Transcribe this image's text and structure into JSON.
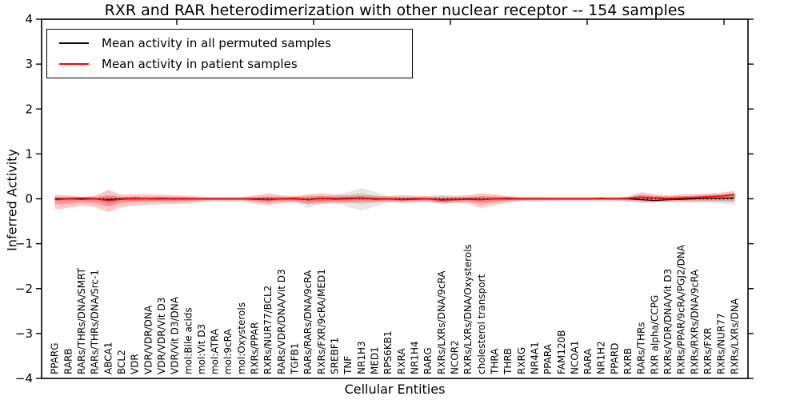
{
  "figure": {
    "title": "RXR and RAR heterodimerization with other nuclear receptor -- 154 samples",
    "xlabel": "Cellular Entities",
    "ylabel": "Inferred Activity",
    "legend": {
      "items": [
        {
          "label": "Mean activity in all permuted samples",
          "color": "#000000"
        },
        {
          "label": "Mean activity in patient samples",
          "color": "#ff0000"
        }
      ]
    }
  },
  "chart_data": {
    "type": "line",
    "title": "RXR and RAR heterodimerization with other nuclear receptor -- 154 samples",
    "xlabel": "Cellular Entities",
    "ylabel": "Inferred Activity",
    "ylim": [
      -4,
      4
    ],
    "yticks": [
      -4,
      -3,
      -2,
      -1,
      0,
      1,
      2,
      3,
      4
    ],
    "grid": false,
    "legend_position": "upper left",
    "zero_line": {
      "y": 0,
      "style": "dotted",
      "color": "#000000"
    },
    "categories": [
      "PPARG",
      "RARB",
      "RARs/THRs/DNA/SMRT",
      "RARs/THRs/DNA/Src-1",
      "ABCA1",
      "BCL2",
      "VDR",
      "VDR/VDR/DNA",
      "VDR/VDR/Vit D3",
      "VDR/Vit D3/DNA",
      "mol:Bile acids",
      "mol:Vit D3",
      "mol:ATRA",
      "mol:9cRA",
      "mol:Oxysterols",
      "RXRs/PPAR",
      "RXRs/NUR77/BCL2",
      "RARs/VDR/DNA/Vit D3",
      "TGFB1",
      "RARs/RARs/DNA/9cRA",
      "RXRs/FXR/9cRA/MED1",
      "SREBF1",
      "TNF",
      "NR1H3",
      "MED1",
      "RPS6KB1",
      "RXRA",
      "NR1H4",
      "RARG",
      "RXRs/LXRs/DNA/9cRA",
      "NCOR2",
      "RXRs/LXRs/DNA/Oxysterols",
      "cholesterol transport",
      "THRA",
      "THRB",
      "RXRG",
      "NR4A1",
      "PPARA",
      "FAM120B",
      "NCOA1",
      "RARA",
      "NR1H2",
      "PPARD",
      "RXRB",
      "RARs/THRs",
      "RXR alpha/CCPG",
      "RXRs/VDR/DNA/Vit D3",
      "RXRs/PPAR/9cRA/PGJ2/DNA",
      "RXRs/RXRs/DNA/9cRA",
      "RXRs/FXR",
      "RXRs/NUR77",
      "RXRs/LXRs/DNA"
    ],
    "series": [
      {
        "name": "Mean activity in all permuted samples",
        "color": "#000000",
        "band_color": "rgba(128,128,128,0.18)",
        "band_inner_color": "rgba(128,128,128,0.16)",
        "values": [
          0,
          0,
          0.01,
          0,
          -0.02,
          0,
          0.01,
          0,
          0,
          0,
          0,
          0,
          0,
          0,
          0,
          0,
          -0.01,
          0,
          0,
          -0.02,
          0.01,
          0,
          0.01,
          0.02,
          0,
          0,
          -0.01,
          0,
          0,
          -0.02,
          -0.01,
          0,
          -0.01,
          0,
          0,
          0,
          0,
          0,
          0,
          0,
          0,
          0,
          0,
          0,
          -0.02,
          -0.04,
          -0.02,
          -0.01,
          0,
          0.01,
          0.01,
          0.02
        ],
        "band_upper": [
          0.04,
          0.04,
          0.04,
          0.05,
          0.06,
          0.05,
          0.04,
          0.04,
          0.04,
          0.04,
          0.04,
          0.03,
          0.03,
          0.03,
          0.03,
          0.04,
          0.06,
          0.05,
          0.05,
          0.08,
          0.06,
          0.08,
          0.16,
          0.24,
          0.16,
          0.07,
          0.05,
          0.05,
          0.05,
          0.06,
          0.05,
          0.05,
          0.06,
          0.05,
          0.05,
          0.05,
          0.05,
          0.05,
          0.05,
          0.05,
          0.05,
          0.05,
          0.05,
          0.05,
          0.06,
          0.06,
          0.06,
          0.06,
          0.06,
          0.06,
          0.07,
          0.08
        ],
        "band_lower": [
          -0.05,
          -0.05,
          -0.04,
          -0.05,
          -0.07,
          -0.05,
          -0.05,
          -0.04,
          -0.04,
          -0.04,
          -0.04,
          -0.03,
          -0.03,
          -0.03,
          -0.03,
          -0.05,
          -0.07,
          -0.05,
          -0.06,
          -0.21,
          -0.1,
          -0.08,
          -0.18,
          -0.26,
          -0.18,
          -0.08,
          -0.06,
          -0.05,
          -0.05,
          -0.12,
          -0.08,
          -0.06,
          -0.07,
          -0.06,
          -0.05,
          -0.05,
          -0.05,
          -0.05,
          -0.06,
          -0.06,
          -0.06,
          -0.06,
          -0.06,
          -0.06,
          -0.08,
          -0.08,
          -0.08,
          -0.09,
          -0.1,
          -0.1,
          -0.11,
          -0.14
        ]
      },
      {
        "name": "Mean activity in patient samples",
        "color": "#ff0000",
        "band_color": "rgba(255,0,0,0.22)",
        "band_inner_color": "rgba(255,0,0,0.25)",
        "values": [
          -0.02,
          0,
          -0.01,
          0,
          -0.04,
          -0.01,
          0.01,
          0,
          0.01,
          0,
          0,
          0,
          0,
          0,
          0,
          -0.01,
          -0.02,
          0,
          0.01,
          -0.02,
          0.01,
          -0.01,
          0,
          0.02,
          -0.01,
          0,
          -0.02,
          -0.01,
          0,
          -0.03,
          -0.02,
          -0.01,
          -0.02,
          0,
          0.01,
          0,
          0,
          0,
          0,
          0,
          0,
          0.01,
          0,
          0.01,
          0.04,
          0.02,
          0.01,
          0.02,
          0.03,
          0.05,
          0.06,
          0.09
        ],
        "band_upper": [
          0.09,
          0.08,
          0.05,
          0.07,
          0.2,
          0.09,
          0.1,
          0.1,
          0.09,
          0.08,
          0.07,
          0.05,
          0.04,
          0.04,
          0.04,
          0.08,
          0.12,
          0.08,
          0.06,
          0.1,
          0.12,
          0.1,
          0.08,
          0.09,
          0.07,
          0.06,
          0.08,
          0.07,
          0.06,
          0.08,
          0.07,
          0.08,
          0.13,
          0.1,
          0.06,
          0.04,
          0.04,
          0.03,
          0.03,
          0.03,
          0.03,
          0.03,
          0.03,
          0.05,
          0.15,
          0.1,
          0.08,
          0.1,
          0.11,
          0.12,
          0.14,
          0.18
        ],
        "band_lower": [
          -0.24,
          -0.2,
          -0.15,
          -0.18,
          -0.3,
          -0.18,
          -0.15,
          -0.13,
          -0.12,
          -0.12,
          -0.1,
          -0.07,
          -0.05,
          -0.05,
          -0.05,
          -0.1,
          -0.14,
          -0.1,
          -0.08,
          -0.12,
          -0.12,
          -0.11,
          -0.09,
          -0.08,
          -0.08,
          -0.07,
          -0.09,
          -0.08,
          -0.07,
          -0.1,
          -0.09,
          -0.1,
          -0.2,
          -0.14,
          -0.08,
          -0.05,
          -0.04,
          -0.04,
          -0.03,
          -0.03,
          -0.03,
          -0.03,
          -0.03,
          -0.04,
          -0.09,
          -0.08,
          -0.07,
          -0.06,
          -0.06,
          -0.06,
          -0.06,
          -0.07
        ]
      }
    ]
  }
}
